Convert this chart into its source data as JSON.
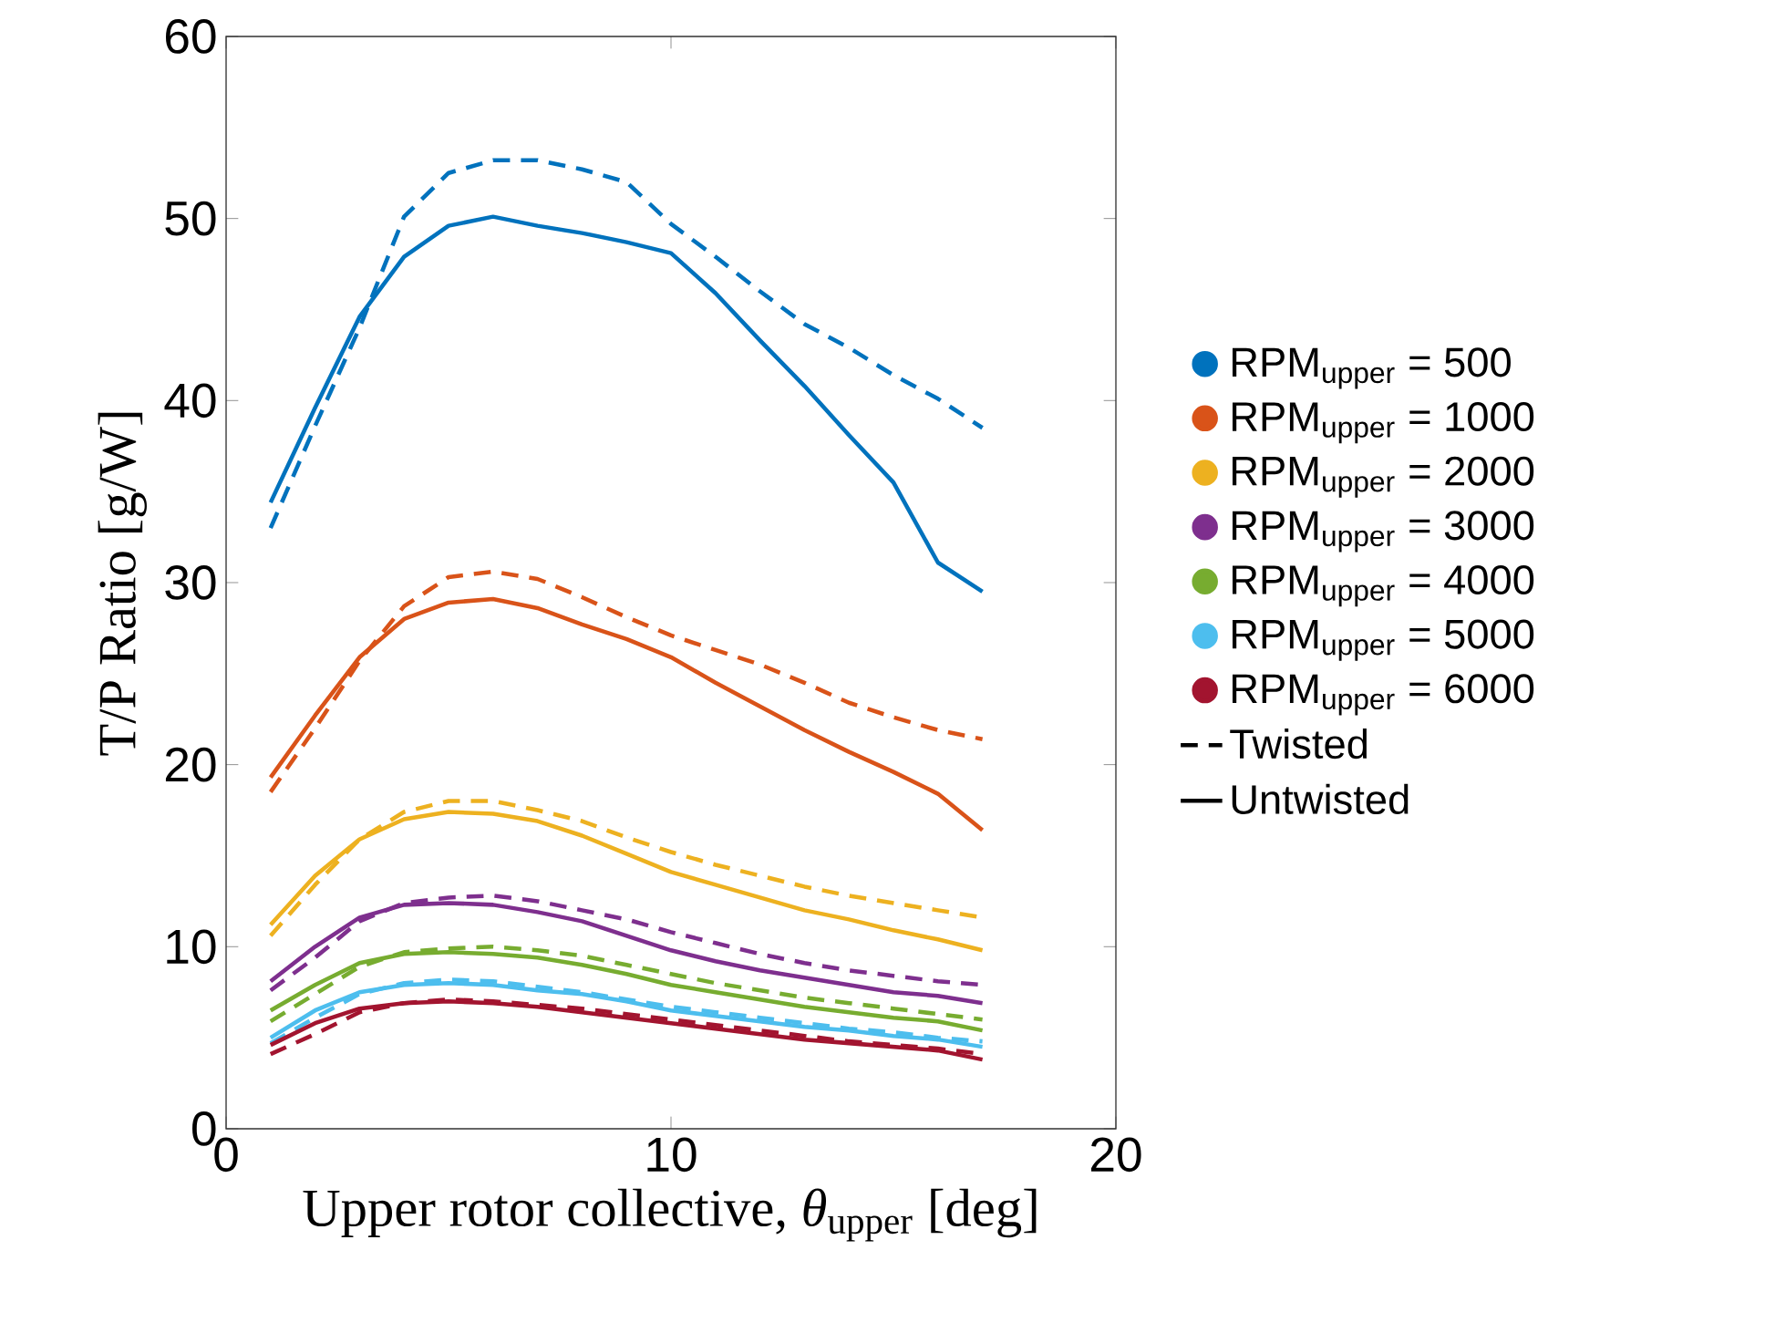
{
  "chart_data": {
    "type": "line",
    "xlabel": "Upper rotor collective, *θ*$_{upper}$ [deg]",
    "ylabel": "T/P Ratio [g/W]",
    "x": [
      1,
      2,
      3,
      4,
      5,
      6,
      7,
      8,
      9,
      10,
      11,
      12,
      13,
      14,
      15,
      16,
      17
    ],
    "xlim": [
      0,
      20
    ],
    "ylim": [
      0,
      60
    ],
    "xticks": [
      0,
      10,
      20
    ],
    "yticks": [
      0,
      10,
      20,
      30,
      40,
      50,
      60
    ],
    "legend": "right",
    "grid": false,
    "annotations": [
      "Twisted",
      "Untwisted"
    ],
    "series": [
      {
        "color": "#0072bd",
        "line_style": "dashed",
        "values": [
          33.0,
          38.6,
          44.0,
          50.1,
          52.5,
          53.2,
          53.2,
          52.7,
          52.0,
          49.7,
          47.9,
          46.0,
          44.2,
          42.9,
          41.4,
          40.1,
          38.5
        ]
      },
      {
        "color": "#d95319",
        "line_style": "dashed",
        "values": [
          18.5,
          22.0,
          25.7,
          28.7,
          30.3,
          30.6,
          30.2,
          29.2,
          28.1,
          27.1,
          26.3,
          25.5,
          24.5,
          23.4,
          22.6,
          21.9,
          21.4
        ]
      },
      {
        "color": "#edb120",
        "line_style": "dashed",
        "values": [
          10.6,
          13.4,
          15.9,
          17.4,
          18.0,
          18.0,
          17.5,
          16.9,
          16.0,
          15.2,
          14.5,
          13.9,
          13.3,
          12.8,
          12.4,
          12.0,
          11.6
        ]
      },
      {
        "color": "#7e2f8e",
        "line_style": "dashed",
        "values": [
          7.6,
          9.4,
          11.4,
          12.4,
          12.7,
          12.8,
          12.5,
          12.0,
          11.5,
          10.8,
          10.2,
          9.6,
          9.1,
          8.7,
          8.4,
          8.1,
          7.9
        ]
      },
      {
        "color": "#77ac30",
        "line_style": "dashed",
        "values": [
          5.9,
          7.4,
          8.9,
          9.7,
          9.9,
          10.0,
          9.8,
          9.5,
          9.0,
          8.5,
          8.0,
          7.6,
          7.2,
          6.9,
          6.6,
          6.3,
          6.0
        ]
      },
      {
        "color": "#4dbeee",
        "line_style": "dashed",
        "values": [
          4.7,
          6.1,
          7.4,
          8.0,
          8.2,
          8.1,
          7.8,
          7.5,
          7.1,
          6.7,
          6.4,
          6.1,
          5.8,
          5.5,
          5.3,
          5.0,
          4.8
        ]
      },
      {
        "color": "#a2142f",
        "line_style": "dashed",
        "values": [
          4.1,
          5.2,
          6.4,
          6.9,
          7.1,
          7.0,
          6.8,
          6.6,
          6.3,
          6.0,
          5.7,
          5.4,
          5.1,
          4.8,
          4.6,
          4.4,
          4.1
        ]
      },
      {
        "name": "RPM$_{upper}$ = 500",
        "color": "#0072bd",
        "line_style": "solid",
        "values": [
          34.4,
          39.6,
          44.6,
          47.9,
          49.6,
          50.1,
          49.6,
          49.2,
          48.7,
          48.1,
          45.9,
          43.3,
          40.8,
          38.1,
          35.5,
          31.1,
          29.5
        ]
      },
      {
        "name": "RPM$_{upper}$ = 1000",
        "color": "#d95319",
        "line_style": "solid",
        "values": [
          19.3,
          22.7,
          25.9,
          28.0,
          28.9,
          29.1,
          28.6,
          27.7,
          26.9,
          25.9,
          24.5,
          23.2,
          21.9,
          20.7,
          19.6,
          18.4,
          16.4
        ]
      },
      {
        "name": "RPM$_{upper}$ = 2000",
        "color": "#edb120",
        "line_style": "solid",
        "values": [
          11.2,
          13.9,
          15.9,
          17.0,
          17.4,
          17.3,
          16.9,
          16.1,
          15.1,
          14.1,
          13.4,
          12.7,
          12.0,
          11.5,
          10.9,
          10.4,
          9.8
        ]
      },
      {
        "name": "RPM$_{upper}$ = 3000",
        "color": "#7e2f8e",
        "line_style": "solid",
        "values": [
          8.1,
          10.0,
          11.6,
          12.3,
          12.4,
          12.3,
          11.9,
          11.4,
          10.6,
          9.8,
          9.2,
          8.7,
          8.3,
          7.9,
          7.5,
          7.3,
          6.9
        ]
      },
      {
        "name": "RPM$_{upper}$ = 4000",
        "color": "#77ac30",
        "line_style": "solid",
        "values": [
          6.5,
          7.9,
          9.1,
          9.6,
          9.7,
          9.6,
          9.4,
          9.0,
          8.5,
          7.9,
          7.5,
          7.1,
          6.7,
          6.4,
          6.1,
          5.9,
          5.4
        ]
      },
      {
        "name": "RPM$_{upper}$ = 5000",
        "color": "#4dbeee",
        "line_style": "solid",
        "values": [
          5.0,
          6.5,
          7.5,
          7.9,
          8.0,
          7.9,
          7.6,
          7.4,
          7.0,
          6.5,
          6.2,
          5.9,
          5.6,
          5.4,
          5.1,
          4.9,
          4.5
        ]
      },
      {
        "name": "RPM$_{upper}$ = 6000",
        "color": "#a2142f",
        "line_style": "solid",
        "values": [
          4.6,
          5.8,
          6.6,
          6.9,
          7.0,
          6.9,
          6.7,
          6.4,
          6.1,
          5.8,
          5.5,
          5.2,
          4.9,
          4.7,
          4.5,
          4.3,
          3.8
        ]
      }
    ]
  }
}
